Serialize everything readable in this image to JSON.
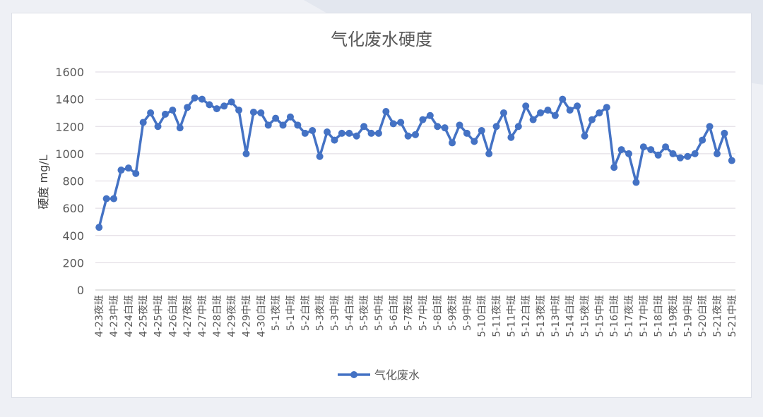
{
  "chart_data": {
    "type": "line",
    "title": "气化废水硬度",
    "xlabel": "",
    "ylabel": "硬度 mg/L",
    "ylim": [
      0,
      1600
    ],
    "yticks": [
      0,
      200,
      400,
      600,
      800,
      1000,
      1200,
      1400,
      1600
    ],
    "grid": true,
    "legend_position": "bottom",
    "color": "#4472c4",
    "x_tick_labels": [
      "4-23夜班",
      "4-23中班",
      "4-24白班",
      "4-25夜班",
      "4-25中班",
      "4-26白班",
      "4-27夜班",
      "4-27中班",
      "4-28白班",
      "4-29夜班",
      "4-29中班",
      "4-30白班",
      "5-1夜班",
      "5-1中班",
      "5-2白班",
      "5-3夜班",
      "5-3中班",
      "5-4白班",
      "5-5夜班",
      "5-5中班",
      "5-6白班",
      "5-7夜班",
      "5-7中班",
      "5-8白班",
      "5-9夜班",
      "5-9中班",
      "5-10白班",
      "5-11夜班",
      "5-11中班",
      "5-12白班",
      "5-13夜班",
      "5-13中班",
      "5-14白班",
      "5-15夜班",
      "5-15中班",
      "5-16白班",
      "5-17夜班",
      "5-17中班",
      "5-18白班",
      "5-19夜班",
      "5-19中班",
      "5-20白班",
      "5-21夜班",
      "5-21中班"
    ],
    "series": [
      {
        "name": "气化废水",
        "values": [
          460,
          670,
          670,
          880,
          895,
          855,
          1230,
          1300,
          1200,
          1290,
          1320,
          1190,
          1340,
          1410,
          1400,
          1360,
          1330,
          1350,
          1380,
          1320,
          1000,
          1305,
          1300,
          1210,
          1260,
          1210,
          1270,
          1210,
          1150,
          1170,
          980,
          1160,
          1100,
          1150,
          1150,
          1130,
          1200,
          1150,
          1150,
          1310,
          1220,
          1230,
          1130,
          1140,
          1250,
          1280,
          1200,
          1190,
          1080,
          1210,
          1150,
          1090,
          1170,
          1000,
          1200,
          1300,
          1120,
          1200,
          1350,
          1250,
          1300,
          1320,
          1280,
          1400,
          1320,
          1350,
          1130,
          1250,
          1300,
          1340,
          900,
          1030,
          1000,
          790,
          1050,
          1030,
          990,
          1050,
          1000,
          970,
          980,
          1000,
          1100,
          1200,
          1000,
          1150,
          950
        ]
      }
    ]
  }
}
